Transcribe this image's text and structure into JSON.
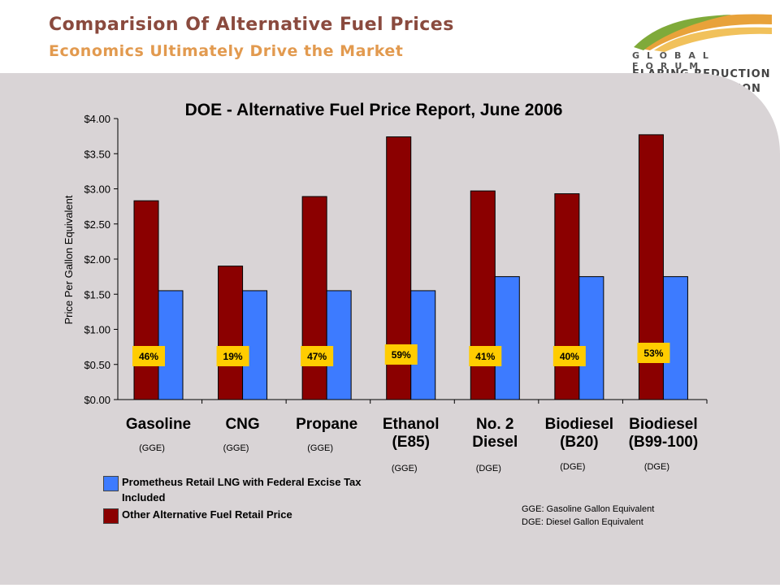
{
  "slide": {
    "title": "Comparision Of Alternative Fuel Prices",
    "subtitle": "Economics Ultimately Drive the Market"
  },
  "logo": {
    "line1": "GLOBAL FORUM",
    "line2": "FLARING REDUCTION",
    "line3": "& GAS UTILISATION"
  },
  "colors": {
    "other_fuel": "#8b0000",
    "lng": "#3d7bff",
    "pct_box": "#ffcc00",
    "panel": "#d9d4d6"
  },
  "chart_data": {
    "type": "bar",
    "title": "DOE - Alternative Fuel Price Report, June 2006",
    "ylabel": "Price Per Gallon Equivalent",
    "ylim": [
      0,
      4
    ],
    "yticks": [
      "$0.00",
      "$0.50",
      "$1.00",
      "$1.50",
      "$2.00",
      "$2.50",
      "$3.00",
      "$3.50",
      "$4.00"
    ],
    "categories": [
      [
        "Gasoline"
      ],
      [
        "CNG"
      ],
      [
        "Propane"
      ],
      [
        "Ethanol",
        "(E85)"
      ],
      [
        "No. 2",
        "Diesel"
      ],
      [
        "Biodiesel",
        "(B20)"
      ],
      [
        "Biodiesel",
        "(B99-100)"
      ]
    ],
    "units": [
      "(GGE)",
      "(GGE)",
      "(GGE)",
      "(GGE)",
      "(DGE)",
      "(DGE)",
      "(DGE)"
    ],
    "series": [
      {
        "name": "Other Alternative Fuel Retail Price",
        "values": [
          2.83,
          1.9,
          2.89,
          3.74,
          2.97,
          2.93,
          3.77
        ]
      },
      {
        "name": "Prometheus Retail LNG with Federal Excise Tax Included",
        "values": [
          1.55,
          1.55,
          1.55,
          1.55,
          1.75,
          1.75,
          1.75
        ]
      }
    ],
    "savings_labels": [
      "46%",
      "19%",
      "47%",
      "59%",
      "41%",
      "40%",
      "53%"
    ],
    "legend": [
      "Prometheus Retail LNG with Federal Excise Tax Included",
      "Other Alternative Fuel Retail Price"
    ]
  },
  "notes": [
    "GGE:  Gasoline Gallon Equivalent",
    "DGE:  Diesel Gallon Equivalent"
  ]
}
